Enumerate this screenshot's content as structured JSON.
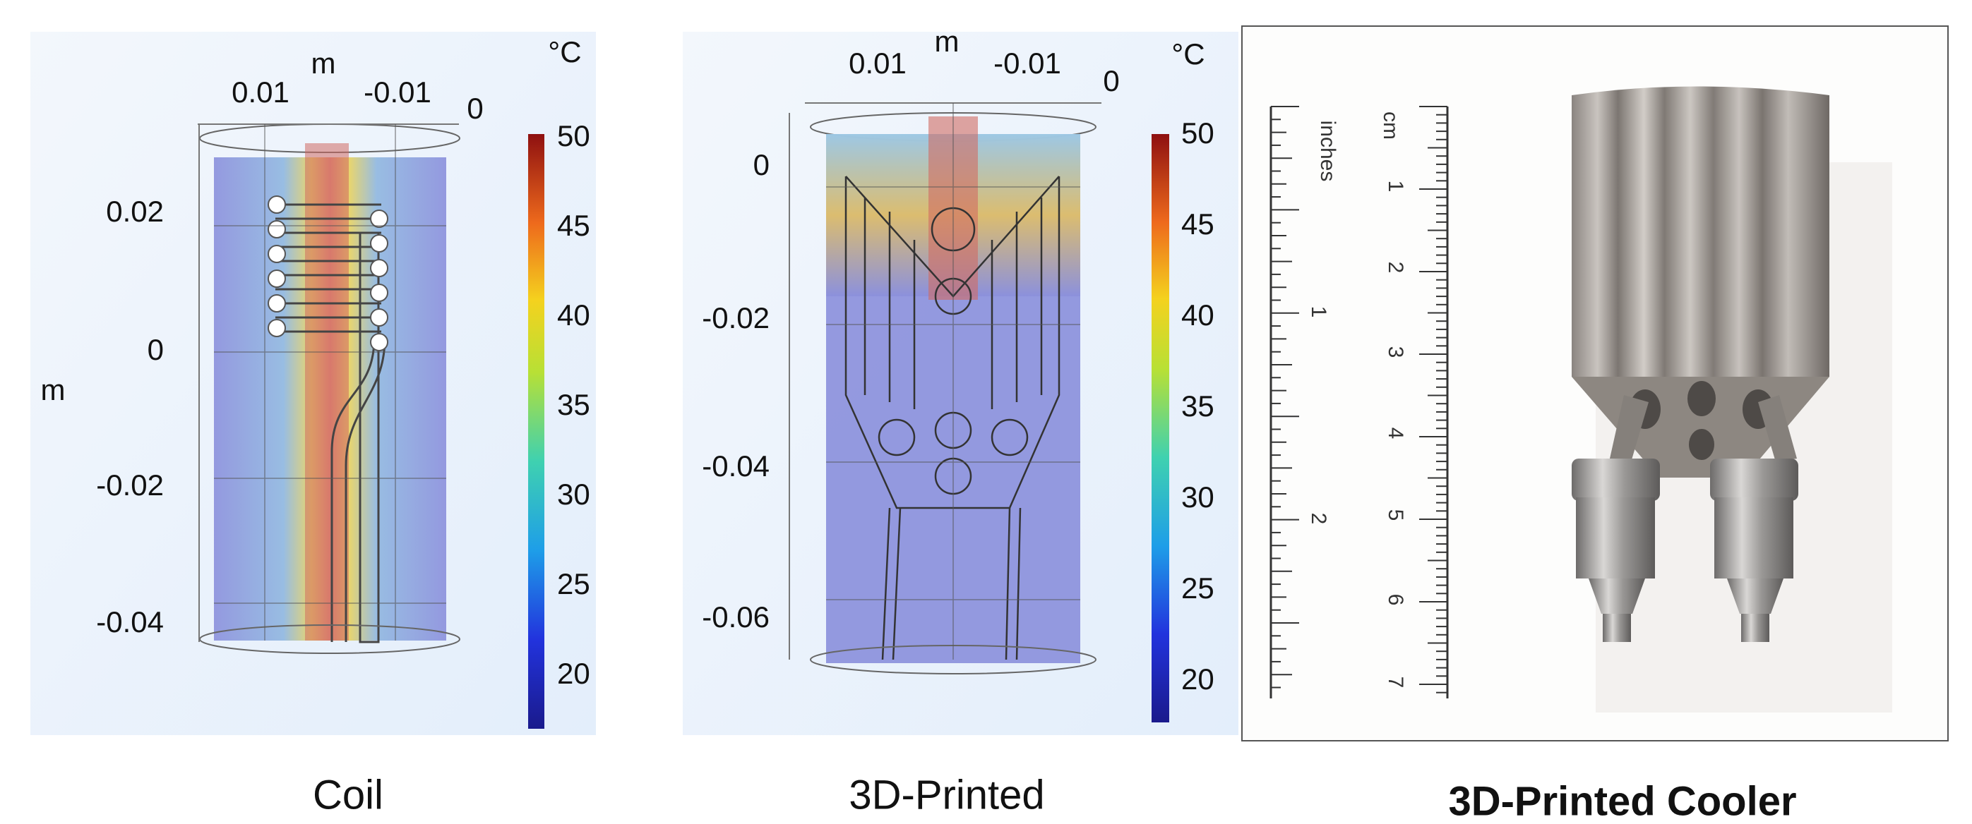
{
  "panels": [
    {
      "x_axis_label": "m",
      "x_ticks": [
        "0.01",
        "-0.01",
        "0"
      ],
      "y_axis_label": "m",
      "y_ticks": [
        "0.02",
        "0",
        "-0.02",
        "-0.04"
      ],
      "colorbar_unit": "°C",
      "colorbar_ticks": [
        50,
        45,
        40,
        35,
        30,
        25,
        20
      ],
      "caption": "Coil"
    },
    {
      "x_axis_label": "m",
      "x_ticks": [
        "0.01",
        "-0.01",
        "0"
      ],
      "y_ticks": [
        "0",
        "-0.02",
        "-0.04",
        "-0.06"
      ],
      "colorbar_unit": "°C",
      "colorbar_ticks": [
        50,
        45,
        40,
        35,
        30,
        25,
        20
      ],
      "caption": "3D-Printed"
    },
    {
      "ruler_inches_label": "inches",
      "ruler_cm_label": "cm",
      "inch_marks": [
        "1",
        "2"
      ],
      "cm_marks": [
        "1",
        "2",
        "3",
        "4",
        "5",
        "6",
        "7"
      ],
      "caption": "3D-Printed Cooler"
    }
  ]
}
